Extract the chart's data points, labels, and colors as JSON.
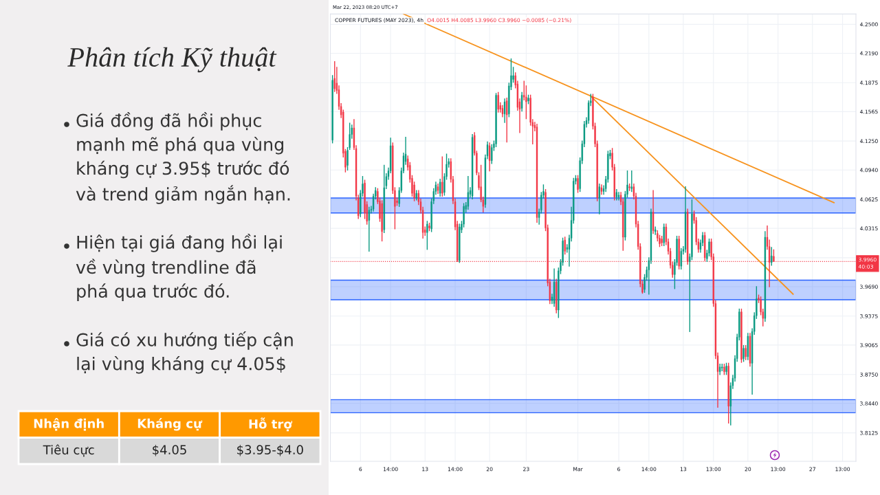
{
  "chart_data": [
    {
      "type": "other",
      "title": "Phân tích Kỹ thuật",
      "annotations": [
        "Giá đồng đã hồi phục\nmạnh mẽ phá qua vùng\nkháng cự 3.95$ trước đó\nvà trend giảm ngắn hạn.",
        "Hiện tại giá đang hồi lại\nvề vùng trendline đã\nphá qua trước đó.",
        "Giá có xu hướng tiếp cận\nlại vùng kháng cự 4.05$"
      ],
      "categories": [
        "Nhận định",
        "Kháng cự",
        "Hỗ trợ"
      ],
      "cell_labels": [
        [
          "Tiêu cực",
          "$4.05",
          "$3.95-$4.0"
        ]
      ]
    },
    {
      "type": "candlestick",
      "title": "COPPER FUTURES (MAY 2023), 4h",
      "subtitle": "O4.0015 H4.0085 L3.9960 C3.9960 −0.0085 (−0.21%)",
      "annotations": [
        "Mar 22, 2023 08:20 UTC+7"
      ],
      "categories": [
        null,
        null,
        null,
        null,
        null,
        null,
        null,
        null,
        null,
        null,
        null,
        null,
        null,
        "6",
        null,
        null,
        null,
        null,
        null,
        null,
        null,
        null,
        null,
        null,
        null,
        null,
        null,
        "14:00",
        null,
        null,
        null,
        null,
        null,
        null,
        null,
        null,
        null,
        null,
        null,
        null,
        null,
        null,
        null,
        "13",
        null,
        null,
        null,
        null,
        null,
        null,
        null,
        null,
        null,
        null,
        null,
        null,
        null,
        "14:00",
        null,
        null,
        null,
        null,
        null,
        null,
        null,
        null,
        null,
        null,
        null,
        null,
        null,
        null,
        null,
        "20",
        null,
        null,
        null,
        null,
        null,
        null,
        null,
        null,
        null,
        null,
        null,
        null,
        null,
        null,
        null,
        null,
        "23",
        null,
        null,
        null,
        null,
        null,
        null,
        null,
        null,
        null,
        null,
        null,
        null,
        null,
        null,
        null,
        null,
        null,
        null,
        null,
        null,
        null,
        null,
        null,
        "Mar",
        null,
        null,
        null,
        null,
        null,
        null,
        null,
        null,
        null,
        null,
        null,
        null,
        null,
        null,
        null,
        null,
        null,
        null,
        "6",
        null,
        null,
        null,
        null,
        null,
        null,
        null,
        null,
        null,
        null,
        null,
        null,
        null,
        "14:00",
        null,
        null,
        null,
        null,
        null,
        null,
        null,
        null,
        null,
        null,
        null,
        null,
        null,
        null,
        null,
        "13",
        null,
        null,
        null,
        null,
        null,
        null,
        null,
        null,
        null,
        null,
        null,
        null,
        null,
        "13:00",
        null,
        null,
        null,
        null,
        null,
        null,
        null,
        null,
        null,
        null,
        null,
        null,
        null,
        null,
        null,
        "20",
        null,
        null,
        null,
        null,
        null,
        null,
        null,
        null,
        null,
        null,
        null,
        null,
        null,
        "13:00",
        null,
        null,
        null,
        null,
        null,
        null,
        null,
        null,
        null,
        null,
        null,
        null,
        null,
        null,
        null,
        "27",
        null,
        null,
        null,
        null,
        null,
        null,
        null,
        null,
        null,
        null,
        null,
        null,
        null,
        "13:00",
        null,
        null,
        null,
        null,
        null,
        null
      ],
      "ohlc": [
        [
          4.126,
          4.195,
          4.123,
          4.19
        ],
        [
          4.192,
          4.21,
          4.178,
          4.181
        ],
        [
          4.187,
          4.204,
          4.176,
          4.179
        ],
        [
          4.18,
          4.184,
          4.159,
          4.162
        ],
        [
          4.162,
          4.165,
          4.15,
          4.153
        ],
        [
          4.156,
          4.158,
          4.108,
          4.112
        ],
        [
          4.114,
          4.116,
          4.092,
          4.097
        ],
        [
          4.099,
          4.118,
          4.094,
          4.115
        ],
        [
          4.118,
          4.144,
          4.116,
          4.132
        ],
        [
          4.132,
          4.142,
          4.128,
          4.139
        ],
        [
          4.139,
          4.148,
          4.116,
          4.118
        ],
        [
          4.117,
          4.12,
          4.062,
          4.066
        ],
        [
          4.064,
          4.067,
          4.042,
          4.045
        ],
        [
          4.047,
          4.072,
          4.044,
          4.069
        ],
        [
          4.069,
          4.087,
          4.066,
          4.079
        ],
        [
          4.08,
          4.083,
          4.042,
          4.048
        ],
        [
          4.057,
          4.06,
          4.036,
          4.039
        ],
        [
          4.04,
          4.054,
          4.007,
          4.051
        ],
        [
          4.051,
          4.055,
          4.048,
          4.052
        ],
        [
          4.052,
          4.068,
          4.05,
          4.066
        ],
        [
          4.066,
          4.075,
          4.063,
          4.072
        ],
        [
          4.071,
          4.074,
          4.058,
          4.06
        ],
        [
          4.061,
          4.064,
          4.039,
          4.042
        ],
        [
          4.058,
          4.061,
          4.018,
          4.028
        ],
        [
          4.03,
          4.099,
          4.027,
          4.075
        ],
        [
          4.077,
          4.09,
          4.074,
          4.087
        ],
        [
          4.087,
          4.096,
          4.084,
          4.093
        ],
        [
          4.093,
          4.128,
          4.091,
          4.12
        ],
        [
          4.12,
          4.123,
          4.069,
          4.072
        ],
        [
          4.072,
          4.075,
          4.031,
          4.055
        ],
        [
          4.061,
          4.064,
          4.056,
          4.059
        ],
        [
          4.058,
          4.075,
          4.055,
          4.072
        ],
        [
          4.072,
          4.096,
          4.07,
          4.093
        ],
        [
          4.093,
          4.112,
          4.091,
          4.109
        ],
        [
          4.103,
          4.129,
          4.1,
          4.111
        ],
        [
          4.106,
          4.109,
          4.094,
          4.097
        ],
        [
          4.099,
          4.102,
          4.081,
          4.084
        ],
        [
          4.085,
          4.088,
          4.066,
          4.069
        ],
        [
          4.078,
          4.081,
          4.061,
          4.064
        ],
        [
          4.064,
          4.072,
          4.062,
          4.069
        ],
        [
          4.069,
          4.072,
          4.057,
          4.06
        ],
        [
          4.06,
          4.063,
          4.048,
          4.051
        ],
        [
          4.051,
          4.054,
          4.021,
          4.027
        ],
        [
          4.03,
          4.033,
          4.024,
          4.027
        ],
        [
          4.027,
          4.039,
          4.009,
          4.036
        ],
        [
          4.034,
          4.037,
          4.029,
          4.032
        ],
        [
          4.031,
          4.063,
          4.028,
          4.06
        ],
        [
          4.061,
          4.074,
          4.058,
          4.071
        ],
        [
          4.071,
          4.081,
          4.068,
          4.078
        ],
        [
          4.076,
          4.079,
          4.069,
          4.072
        ],
        [
          4.069,
          4.084,
          4.066,
          4.081
        ],
        [
          4.081,
          4.108,
          4.066,
          4.069
        ],
        [
          4.07,
          4.09,
          4.067,
          4.087
        ],
        [
          4.087,
          4.111,
          4.084,
          4.1
        ],
        [
          4.1,
          4.106,
          4.097,
          4.103
        ],
        [
          4.103,
          4.106,
          4.081,
          4.084
        ],
        [
          4.084,
          4.087,
          4.058,
          4.061
        ],
        [
          4.06,
          4.063,
          4.03,
          4.033
        ],
        [
          4.036,
          4.039,
          3.996,
          3.997
        ],
        [
          3.997,
          4.036,
          3.995,
          4.033
        ],
        [
          4.03,
          4.039,
          4.027,
          4.036
        ],
        [
          4.036,
          4.058,
          4.033,
          4.055
        ],
        [
          4.052,
          4.059,
          4.049,
          4.056
        ],
        [
          4.055,
          4.087,
          4.052,
          4.07
        ],
        [
          4.068,
          4.075,
          4.065,
          4.072
        ],
        [
          4.066,
          4.132,
          4.063,
          4.129
        ],
        [
          4.131,
          4.134,
          4.11,
          4.112
        ],
        [
          4.112,
          4.114,
          4.089,
          4.091
        ],
        [
          4.088,
          4.091,
          4.073,
          4.075
        ],
        [
          4.076,
          4.099,
          4.06,
          4.062
        ],
        [
          4.062,
          4.065,
          4.049,
          4.055
        ],
        [
          4.057,
          4.11,
          4.054,
          4.107
        ],
        [
          4.109,
          4.124,
          4.106,
          4.121
        ],
        [
          4.12,
          4.123,
          4.093,
          4.104
        ],
        [
          4.104,
          4.121,
          4.101,
          4.118
        ],
        [
          4.118,
          4.125,
          4.115,
          4.122
        ],
        [
          4.122,
          4.176,
          4.119,
          4.174
        ],
        [
          4.174,
          4.177,
          4.156,
          4.159
        ],
        [
          4.163,
          4.166,
          4.156,
          4.159
        ],
        [
          4.16,
          4.163,
          4.151,
          4.154
        ],
        [
          4.154,
          4.17,
          4.145,
          4.167
        ],
        [
          4.168,
          4.171,
          4.124,
          4.153
        ],
        [
          4.154,
          4.187,
          4.151,
          4.184
        ],
        [
          4.183,
          4.213,
          4.18,
          4.195
        ],
        [
          4.191,
          4.204,
          4.188,
          4.195
        ],
        [
          4.195,
          4.198,
          4.182,
          4.185
        ],
        [
          4.186,
          4.189,
          4.158,
          4.161
        ],
        [
          4.167,
          4.17,
          4.134,
          4.159
        ],
        [
          4.16,
          4.177,
          4.157,
          4.174
        ],
        [
          4.174,
          4.189,
          4.169,
          4.172
        ],
        [
          4.172,
          4.184,
          4.149,
          4.167
        ],
        [
          4.168,
          4.174,
          4.165,
          4.171
        ],
        [
          4.171,
          4.174,
          4.142,
          4.145
        ],
        [
          4.145,
          4.148,
          4.122,
          4.141
        ],
        [
          4.142,
          4.145,
          4.136,
          4.139
        ],
        [
          4.14,
          4.143,
          4.038,
          4.043
        ],
        [
          4.043,
          4.052,
          4.036,
          4.049
        ],
        [
          4.051,
          4.07,
          4.048,
          4.067
        ],
        [
          4.067,
          4.078,
          4.064,
          4.071
        ],
        [
          4.07,
          4.073,
          4.029,
          4.032
        ],
        [
          4.032,
          4.035,
          3.97,
          3.973
        ],
        [
          3.974,
          3.977,
          3.951,
          3.954
        ],
        [
          3.954,
          3.961,
          3.951,
          3.958
        ],
        [
          3.951,
          3.988,
          3.948,
          3.974
        ],
        [
          3.974,
          3.977,
          3.941,
          3.944
        ],
        [
          3.944,
          3.989,
          3.936,
          3.986
        ],
        [
          3.986,
          3.998,
          3.983,
          3.995
        ],
        [
          3.995,
          4.021,
          3.992,
          4.018
        ],
        [
          4.019,
          4.022,
          4.004,
          4.007
        ],
        [
          4.009,
          4.014,
          4.006,
          4.011
        ],
        [
          4.009,
          4.024,
          3.991,
          4.021
        ],
        [
          4.021,
          4.054,
          4.018,
          4.04
        ],
        [
          4.04,
          4.085,
          4.037,
          4.082
        ],
        [
          4.082,
          4.088,
          4.079,
          4.085
        ],
        [
          4.085,
          4.088,
          4.07,
          4.073
        ],
        [
          4.074,
          4.107,
          4.071,
          4.104
        ],
        [
          4.104,
          4.125,
          4.101,
          4.122
        ],
        [
          4.122,
          4.146,
          4.119,
          4.143
        ],
        [
          4.143,
          4.15,
          4.14,
          4.147
        ],
        [
          4.147,
          4.168,
          4.144,
          4.166
        ],
        [
          4.166,
          4.175,
          4.163,
          4.168
        ],
        [
          4.172,
          4.175,
          4.138,
          4.141
        ],
        [
          4.141,
          4.144,
          4.119,
          4.122
        ],
        [
          4.122,
          4.125,
          4.061,
          4.064
        ],
        [
          4.064,
          4.079,
          4.047,
          4.076
        ],
        [
          4.075,
          4.078,
          4.068,
          4.071
        ],
        [
          4.071,
          4.077,
          4.068,
          4.074
        ],
        [
          4.074,
          4.087,
          4.071,
          4.084
        ],
        [
          4.084,
          4.114,
          4.081,
          4.111
        ],
        [
          4.109,
          4.115,
          4.106,
          4.112
        ],
        [
          4.112,
          4.117,
          4.094,
          4.097
        ],
        [
          4.097,
          4.1,
          4.062,
          4.065
        ],
        [
          4.065,
          4.073,
          4.062,
          4.07
        ],
        [
          4.065,
          4.07,
          4.062,
          4.067
        ],
        [
          4.067,
          4.07,
          4.057,
          4.06
        ],
        [
          4.06,
          4.063,
          4.008,
          4.022
        ],
        [
          4.022,
          4.071,
          4.019,
          4.068
        ],
        [
          4.068,
          4.093,
          4.065,
          4.078
        ],
        [
          4.076,
          4.079,
          4.072,
          4.075
        ],
        [
          4.074,
          4.093,
          4.071,
          4.076
        ],
        [
          4.076,
          4.079,
          4.063,
          4.066
        ],
        [
          4.066,
          4.069,
          4.033,
          4.036
        ],
        [
          4.036,
          4.039,
          4.009,
          4.012
        ],
        [
          4.012,
          4.015,
          3.969,
          3.972
        ],
        [
          3.972,
          3.975,
          3.962,
          3.963
        ],
        [
          3.966,
          3.982,
          3.963,
          3.979
        ],
        [
          3.979,
          3.99,
          3.976,
          3.987
        ],
        [
          3.987,
          4.0,
          3.961,
          3.997
        ],
        [
          3.997,
          4.052,
          3.994,
          4.049
        ],
        [
          4.049,
          4.072,
          4.026,
          4.029
        ],
        [
          4.028,
          4.033,
          4.025,
          4.03
        ],
        [
          4.026,
          4.029,
          4.018,
          4.021
        ],
        [
          4.021,
          4.024,
          4.012,
          4.015
        ],
        [
          4.02,
          4.023,
          4.013,
          4.016
        ],
        [
          4.016,
          4.036,
          4.013,
          4.033
        ],
        [
          4.033,
          4.036,
          4.014,
          4.017
        ],
        [
          4.017,
          4.02,
          4.004,
          4.007
        ],
        [
          4.007,
          4.01,
          3.989,
          3.992
        ],
        [
          3.992,
          3.995,
          3.979,
          3.982
        ],
        [
          3.982,
          3.998,
          3.967,
          3.995
        ],
        [
          3.995,
          4.023,
          3.992,
          4.02
        ],
        [
          4.02,
          4.023,
          3.988,
          3.991
        ],
        [
          3.991,
          4.01,
          3.988,
          4.007
        ],
        [
          4.007,
          4.012,
          4.004,
          4.009
        ],
        [
          4.009,
          4.076,
          4.006,
          4.049
        ],
        [
          4.049,
          4.052,
          3.993,
          3.996
        ],
        [
          3.996,
          4.004,
          3.921,
          4.001
        ],
        [
          4.001,
          4.062,
          3.998,
          4.047
        ],
        [
          4.047,
          4.05,
          4.037,
          4.04
        ],
        [
          4.04,
          4.043,
          4.014,
          4.017
        ],
        [
          4.017,
          4.02,
          4.006,
          4.009
        ],
        [
          4.009,
          4.019,
          4.006,
          4.016
        ],
        [
          4.016,
          4.027,
          4.013,
          4.024
        ],
        [
          4.024,
          4.027,
          3.997,
          4.0
        ],
        [
          3.999,
          4.008,
          3.996,
          4.005
        ],
        [
          4.005,
          4.02,
          4.002,
          4.017
        ],
        [
          4.017,
          4.02,
          3.998,
          4.001
        ],
        [
          4.001,
          4.004,
          3.948,
          3.951
        ],
        [
          3.951,
          3.954,
          3.892,
          3.895
        ],
        [
          3.895,
          3.898,
          3.84,
          3.878
        ],
        [
          3.878,
          3.886,
          3.875,
          3.883
        ],
        [
          3.882,
          3.886,
          3.879,
          3.883
        ],
        [
          3.883,
          3.886,
          3.875,
          3.878
        ],
        [
          3.878,
          3.887,
          3.875,
          3.884
        ],
        [
          3.884,
          3.887,
          3.823,
          3.841
        ],
        [
          3.841,
          3.866,
          3.821,
          3.863
        ],
        [
          3.863,
          3.874,
          3.86,
          3.871
        ],
        [
          3.871,
          3.895,
          3.868,
          3.892
        ],
        [
          3.892,
          3.918,
          3.889,
          3.915
        ],
        [
          3.915,
          3.945,
          3.912,
          3.942
        ],
        [
          3.942,
          3.945,
          3.888,
          3.891
        ],
        [
          3.892,
          3.906,
          3.889,
          3.903
        ],
        [
          3.903,
          3.906,
          3.891,
          3.894
        ],
        [
          3.894,
          3.919,
          3.891,
          3.916
        ],
        [
          3.916,
          3.919,
          3.884,
          3.887
        ],
        [
          3.887,
          3.924,
          3.854,
          3.921
        ],
        [
          3.921,
          3.941,
          3.918,
          3.938
        ],
        [
          3.938,
          3.969,
          3.935,
          3.956
        ],
        [
          3.957,
          3.96,
          3.952,
          3.955
        ],
        [
          3.955,
          3.958,
          3.939,
          3.942
        ],
        [
          3.942,
          3.945,
          3.927,
          3.935
        ],
        [
          3.935,
          4.028,
          3.932,
          4.022
        ],
        [
          4.022,
          4.034,
          4.009,
          4.012
        ],
        [
          4.012,
          4.019,
          3.969,
          3.995
        ],
        [
          3.995,
          4.011,
          3.992,
          4.002
        ],
        [
          4.0015,
          4.0085,
          3.996,
          3.996
        ],
        null,
        null,
        null,
        null,
        null,
        null,
        null,
        null,
        null,
        null,
        null,
        null,
        null,
        null,
        null,
        null,
        null,
        null,
        null,
        null,
        null,
        null,
        null,
        null,
        null,
        null,
        null,
        null,
        null,
        null,
        null,
        null,
        null,
        null,
        null,
        null,
        null,
        null
      ],
      "series": [
        {
          "type": "line",
          "color": "#f7931e",
          "values": [
            null,
            null,
            null,
            null,
            null,
            null,
            null,
            null,
            null,
            null,
            null,
            null,
            null,
            null,
            null,
            null,
            null,
            null,
            null,
            null,
            null,
            null,
            null,
            null,
            null,
            null,
            null,
            null,
            null,
            null,
            null,
            null,
            null,
            4.261,
            null,
            null,
            null,
            null,
            null,
            null,
            null,
            null,
            null,
            null,
            null,
            null,
            null,
            null,
            null,
            null,
            null,
            null,
            null,
            null,
            null,
            null,
            null,
            null,
            null,
            null,
            null,
            null,
            null,
            null,
            null,
            null,
            null,
            null,
            null,
            null,
            null,
            null,
            null,
            null,
            null,
            null,
            null,
            null,
            null,
            null,
            null,
            null,
            null,
            null,
            null,
            null,
            null,
            null,
            null,
            null,
            null,
            null,
            null,
            null,
            null,
            null,
            null,
            null,
            null,
            null,
            null,
            null,
            null,
            null,
            null,
            null,
            null,
            null,
            null,
            null,
            null,
            null,
            null,
            null,
            null,
            null,
            null,
            null,
            null,
            null,
            null,
            null,
            null,
            null,
            null,
            null,
            null,
            null,
            null,
            null,
            null,
            null,
            null,
            null,
            null,
            null,
            null,
            null,
            null,
            null,
            null,
            null,
            null,
            null,
            null,
            null,
            null,
            null,
            null,
            null,
            null,
            null,
            null,
            null,
            null,
            null,
            null,
            null,
            null,
            null,
            null,
            null,
            null,
            null,
            null,
            null,
            null,
            null,
            null,
            null,
            null,
            null,
            null,
            null,
            null,
            null,
            null,
            null,
            null,
            null,
            null,
            null,
            null,
            null,
            null,
            null,
            null,
            null,
            null,
            null,
            null,
            null,
            null,
            null,
            null,
            null,
            null,
            null,
            null,
            null,
            null,
            null,
            null,
            null,
            null,
            null,
            null,
            null,
            null,
            null,
            null,
            null,
            null,
            null,
            null,
            null,
            null,
            null,
            null,
            null,
            null,
            null,
            null,
            null,
            null,
            null,
            null,
            null,
            null,
            null,
            null,
            null,
            null,
            4.059,
            null,
            null,
            null,
            null,
            null,
            null,
            null,
            null,
            null,
            null
          ]
        },
        {
          "type": "line",
          "color": "#f7931e",
          "values": [
            null,
            null,
            null,
            null,
            null,
            null,
            null,
            null,
            null,
            null,
            null,
            null,
            null,
            null,
            null,
            null,
            null,
            null,
            null,
            null,
            null,
            null,
            null,
            null,
            null,
            null,
            null,
            null,
            null,
            null,
            null,
            null,
            null,
            null,
            null,
            null,
            null,
            null,
            null,
            null,
            null,
            null,
            null,
            null,
            null,
            null,
            null,
            null,
            null,
            null,
            null,
            null,
            null,
            null,
            null,
            null,
            null,
            null,
            null,
            null,
            null,
            null,
            null,
            null,
            null,
            null,
            null,
            null,
            null,
            null,
            null,
            null,
            null,
            null,
            null,
            null,
            null,
            null,
            null,
            null,
            null,
            null,
            null,
            null,
            null,
            null,
            null,
            null,
            null,
            null,
            null,
            null,
            null,
            null,
            null,
            null,
            null,
            null,
            null,
            null,
            null,
            null,
            null,
            null,
            null,
            null,
            null,
            null,
            null,
            null,
            null,
            null,
            null,
            null,
            null,
            null,
            null,
            null,
            null,
            null,
            4.173,
            null,
            null,
            null,
            null,
            null,
            null,
            null,
            null,
            null,
            null,
            null,
            null,
            null,
            null,
            null,
            null,
            null,
            null,
            null,
            null,
            null,
            null,
            null,
            null,
            null,
            null,
            null,
            null,
            null,
            null,
            null,
            null,
            null,
            null,
            null,
            null,
            null,
            null,
            null,
            null,
            null,
            null,
            null,
            null,
            null,
            null,
            null,
            null,
            null,
            null,
            null,
            null,
            null,
            null,
            null,
            null,
            null,
            null,
            null,
            null,
            null,
            null,
            null,
            null,
            null,
            null,
            null,
            null,
            null,
            null,
            null,
            null,
            null,
            null,
            null,
            null,
            null,
            null,
            null,
            null,
            null,
            null,
            null,
            null,
            null,
            null,
            null,
            null,
            null,
            null,
            null,
            null,
            null,
            3.961,
            null,
            null,
            null,
            null,
            null,
            null,
            null,
            null,
            null,
            null,
            null,
            null,
            null,
            null,
            null,
            null,
            null,
            null,
            null,
            null,
            null,
            null,
            null,
            null,
            null,
            null,
            null,
            null,
            null
          ]
        }
      ],
      "bands": [
        {
          "axis": "y",
          "from": 4.048,
          "to": 4.064,
          "color": "#2962ff"
        },
        {
          "axis": "y",
          "from": 3.955,
          "to": 3.976,
          "color": "#2962ff"
        },
        {
          "axis": "y",
          "from": 3.834,
          "to": 3.848,
          "color": "#2962ff"
        }
      ],
      "ref_lines": [
        {
          "axis": "y",
          "value": 3.996,
          "label": "3.9960\n40:03",
          "color": "#f23645",
          "line_style": "dotted"
        }
      ],
      "ylim": [
        3.782,
        4.261
      ],
      "yticks": [
        {
          "value": 4.25,
          "label": "4.2500"
        },
        {
          "value": 4.219,
          "label": "4.2190"
        },
        {
          "value": 4.1875,
          "label": "4.1875"
        },
        {
          "value": 4.1565,
          "label": "4.1565"
        },
        {
          "value": 4.125,
          "label": "4.1250"
        },
        {
          "value": 4.094,
          "label": "4.0940"
        },
        {
          "value": 4.0625,
          "label": "4.0625"
        },
        {
          "value": 4.0315,
          "label": "4.0315"
        },
        {
          "value": 4.0,
          "label": null
        },
        {
          "value": 3.969,
          "label": "3.9690"
        },
        {
          "value": 3.9375,
          "label": "3.9375"
        },
        {
          "value": 3.9065,
          "label": "3.9065"
        },
        {
          "value": 3.875,
          "label": "3.8750"
        },
        {
          "value": 3.844,
          "label": "3.8440"
        },
        {
          "value": 3.8125,
          "label": "3.8125"
        }
      ],
      "grid": true
    }
  ]
}
